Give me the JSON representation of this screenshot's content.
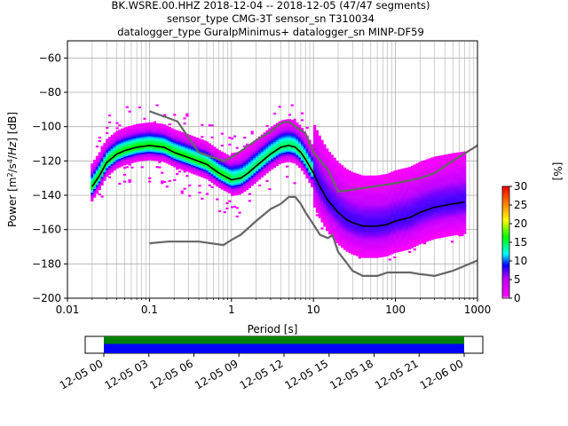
{
  "title": {
    "line1": "BK.WSRE.00.HHZ   2018-12-04 -- 2018-12-05  (47/47 segments)",
    "line2": "sensor_type CMG-3T sensor_sn T310034",
    "line3": "datalogger_type GuralpMinimus+ datalogger_sn MINP-DF59"
  },
  "chart_data": [
    {
      "type": "heatmap",
      "title": "BK.WSRE.00.HHZ   2018-12-04 -- 2018-12-05  (47/47 segments)",
      "xlabel": "Period [s]",
      "ylabel": "Power [m²/s⁴/Hz] [dB]",
      "xscale": "log",
      "xlim": [
        0.01,
        1000
      ],
      "ylim": [
        -200,
        -50
      ],
      "x_ticks": [
        "0.01",
        "0.1",
        "1",
        "10",
        "100",
        "1000"
      ],
      "y_ticks": [
        "−60",
        "−80",
        "−100",
        "−120",
        "−140",
        "−160",
        "−180",
        "−200"
      ],
      "grid": true,
      "colorbar": {
        "label": "[%]",
        "range": [
          0,
          30
        ],
        "ticks": [
          "0",
          "5",
          "10",
          "15",
          "20",
          "25",
          "30"
        ],
        "colormap": "pqlx"
      },
      "series": [
        {
          "name": "",
          "style": "mode",
          "color": "#000000",
          "points": [
            [
              0.02,
              -135
            ],
            [
              0.025,
              -128
            ],
            [
              0.03,
              -121
            ],
            [
              0.04,
              -116
            ],
            [
              0.05,
              -114
            ],
            [
              0.07,
              -112
            ],
            [
              0.1,
              -111
            ],
            [
              0.15,
              -112
            ],
            [
              0.2,
              -115
            ],
            [
              0.3,
              -118
            ],
            [
              0.5,
              -122
            ],
            [
              0.7,
              -127
            ],
            [
              1,
              -131
            ],
            [
              1.3,
              -130
            ],
            [
              1.6,
              -127
            ],
            [
              2,
              -123
            ],
            [
              3,
              -116
            ],
            [
              4,
              -112
            ],
            [
              5,
              -111
            ],
            [
              6,
              -112
            ],
            [
              7,
              -115
            ],
            [
              8,
              -119
            ],
            [
              10,
              -127
            ],
            [
              12,
              -135
            ],
            [
              15,
              -143
            ],
            [
              20,
              -150
            ],
            [
              25,
              -154
            ],
            [
              30,
              -156
            ],
            [
              40,
              -158
            ],
            [
              60,
              -158
            ],
            [
              80,
              -157
            ],
            [
              100,
              -155
            ],
            [
              150,
              -153
            ],
            [
              200,
              -150
            ],
            [
              300,
              -147
            ],
            [
              500,
              -145
            ],
            [
              700,
              -144
            ]
          ]
        },
        {
          "name": "",
          "style": "noise-model-high",
          "color": "#666666",
          "points": [
            [
              0.1,
              -91
            ],
            [
              0.17,
              -95
            ],
            [
              0.22,
              -97
            ],
            [
              0.4,
              -115
            ],
            [
              0.8,
              -120
            ],
            [
              1,
              -118
            ],
            [
              2,
              -108
            ],
            [
              3,
              -103
            ],
            [
              4,
              -98
            ],
            [
              5,
              -97
            ],
            [
              6,
              -100
            ],
            [
              7,
              -102
            ],
            [
              8,
              -104
            ],
            [
              10,
              -115
            ],
            [
              15,
              -125
            ],
            [
              20,
              -138
            ],
            [
              100,
              -133
            ],
            [
              200,
              -130
            ],
            [
              300,
              -127
            ],
            [
              500,
              -120
            ],
            [
              1000,
              -111
            ]
          ]
        },
        {
          "name": "",
          "style": "noise-model-low",
          "color": "#666666",
          "points": [
            [
              0.1,
              -168
            ],
            [
              0.17,
              -167
            ],
            [
              0.4,
              -167
            ],
            [
              0.8,
              -169
            ],
            [
              1,
              -166
            ],
            [
              1.3,
              -163
            ],
            [
              2,
              -155
            ],
            [
              3,
              -148
            ],
            [
              4,
              -145
            ],
            [
              5,
              -141
            ],
            [
              6,
              -141
            ],
            [
              7,
              -145
            ],
            [
              8,
              -150
            ],
            [
              10,
              -157
            ],
            [
              12,
              -163
            ],
            [
              15,
              -165
            ],
            [
              17,
              -163
            ],
            [
              20,
              -173
            ],
            [
              25,
              -179
            ],
            [
              30,
              -184
            ],
            [
              40,
              -187
            ],
            [
              60,
              -187
            ],
            [
              80,
              -185
            ],
            [
              100,
              -185
            ],
            [
              150,
              -185
            ],
            [
              200,
              -186
            ],
            [
              300,
              -187
            ],
            [
              500,
              -184
            ],
            [
              1000,
              -178
            ]
          ]
        }
      ]
    },
    {
      "type": "bar",
      "title": "",
      "xlabel": "",
      "ylabel": "",
      "x_ticks": [
        "12-05 00",
        "12-05 03",
        "12-05 06",
        "12-05 09",
        "12-05 12",
        "12-05 15",
        "12-05 18",
        "12-05 21",
        "12-06 00"
      ],
      "data_coverage": {
        "start": "12-05 00",
        "end": "12-06 00",
        "colors": [
          "#008000",
          "#0000ff"
        ]
      }
    }
  ]
}
